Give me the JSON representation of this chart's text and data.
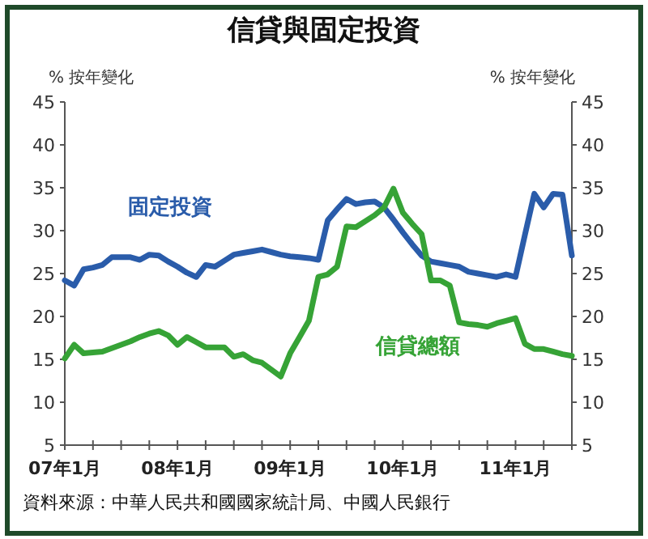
{
  "chart_data": {
    "type": "line",
    "title": "信貸與固定投資",
    "ylabel": "% 按年變化",
    "y2label": "% 按年變化",
    "annotations": [
      "資料來源：中華人民共和國國家統計局、中國人民銀行"
    ],
    "categories": [
      "07年1月",
      null,
      null,
      null,
      null,
      null,
      null,
      null,
      null,
      null,
      null,
      null,
      "08年1月",
      null,
      null,
      null,
      null,
      null,
      null,
      null,
      null,
      null,
      null,
      null,
      "09年1月",
      null,
      null,
      null,
      null,
      null,
      null,
      null,
      null,
      null,
      null,
      null,
      "10年1月",
      null,
      null,
      null,
      null,
      null,
      null,
      null,
      null,
      null,
      null,
      null,
      "11年1月",
      null,
      null,
      null,
      null,
      null,
      null
    ],
    "ylim": [
      5,
      45
    ],
    "yticks": [
      5,
      10,
      15,
      20,
      25,
      30,
      35,
      40,
      45
    ],
    "y2lim": [
      5,
      45
    ],
    "y2ticks": [
      5,
      10,
      15,
      20,
      25,
      30,
      35,
      40,
      45
    ],
    "grid": false,
    "legend": false,
    "marker": "none",
    "line_style": "solid",
    "series": [
      {
        "name": "固定投資",
        "color": "#2a5caa",
        "values": [
          24.2,
          23.6,
          25.5,
          25.7,
          26,
          26.9,
          26.9,
          26.9,
          26.6,
          27.2,
          27.1,
          26.4,
          25.8,
          25.1,
          24.6,
          26,
          25.8,
          26.5,
          27.2,
          27.4,
          27.6,
          27.8,
          27.5,
          27.2,
          27.0,
          26.9,
          26.8,
          26.6,
          31.2,
          32.5,
          33.7,
          33.1,
          33.3,
          33.4,
          32.7,
          31.3,
          29.8,
          28.4,
          27.1,
          26.4,
          26.2,
          26,
          25.8,
          25.2,
          25,
          24.8,
          24.6,
          24.9,
          24.6,
          29.5,
          34.3,
          32.7,
          34.3,
          34.2,
          27.1
        ]
      },
      {
        "name": "信貸總額",
        "color": "#36a336",
        "values": [
          15.1,
          16.7,
          15.7,
          15.8,
          15.9,
          16.3,
          16.7,
          17.1,
          17.6,
          18,
          18.3,
          17.8,
          16.7,
          17.6,
          17,
          16.4,
          16.4,
          16.4,
          15.3,
          15.6,
          14.9,
          14.6,
          13.8,
          13,
          15.7,
          17.6,
          19.5,
          24.6,
          24.9,
          25.8,
          30.5,
          30.4,
          31.1,
          31.8,
          32.7,
          34.9,
          32.1,
          30.8,
          29.6,
          24.2,
          24.2,
          23.6,
          19.3,
          19.1,
          19,
          18.8,
          19.2,
          19.5,
          19.8,
          16.8,
          16.2,
          16.2,
          15.9,
          15.6,
          15.4
        ]
      }
    ]
  }
}
